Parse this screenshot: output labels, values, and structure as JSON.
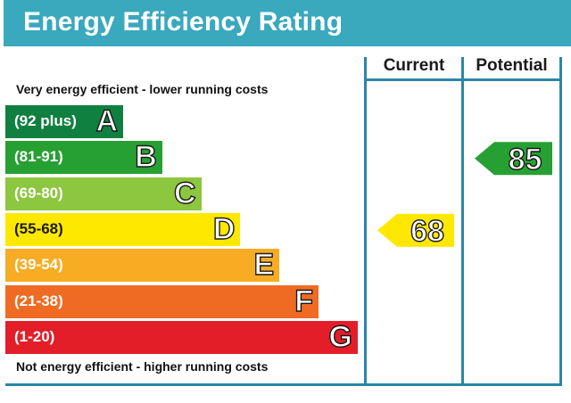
{
  "title": "Energy Efficiency Rating",
  "columns": {
    "current": "Current",
    "potential": "Potential"
  },
  "captions": {
    "top": "Very energy efficient - lower running costs",
    "bottom": "Not energy efficient - higher running costs"
  },
  "chart_data": {
    "type": "bar",
    "title": "Energy Efficiency Rating",
    "bands": [
      {
        "letter": "A",
        "range": "(92 plus)",
        "min": 92,
        "max": 100,
        "color": "#108040"
      },
      {
        "letter": "B",
        "range": "(81-91)",
        "min": 81,
        "max": 91,
        "color": "#27a033"
      },
      {
        "letter": "C",
        "range": "(69-80)",
        "min": 69,
        "max": 80,
        "color": "#8dc63f"
      },
      {
        "letter": "D",
        "range": "(55-68)",
        "min": 55,
        "max": 68,
        "color": "#ffe800"
      },
      {
        "letter": "E",
        "range": "(39-54)",
        "min": 39,
        "max": 54,
        "color": "#f7ac24"
      },
      {
        "letter": "F",
        "range": "(21-38)",
        "min": 21,
        "max": 38,
        "color": "#ef6b23"
      },
      {
        "letter": "G",
        "range": "(1-20)",
        "min": 1,
        "max": 20,
        "color": "#e41e28"
      }
    ],
    "current": {
      "value": 68,
      "band": "D",
      "color": "#ffe800"
    },
    "potential": {
      "value": 85,
      "band": "B",
      "color": "#27a033"
    }
  }
}
